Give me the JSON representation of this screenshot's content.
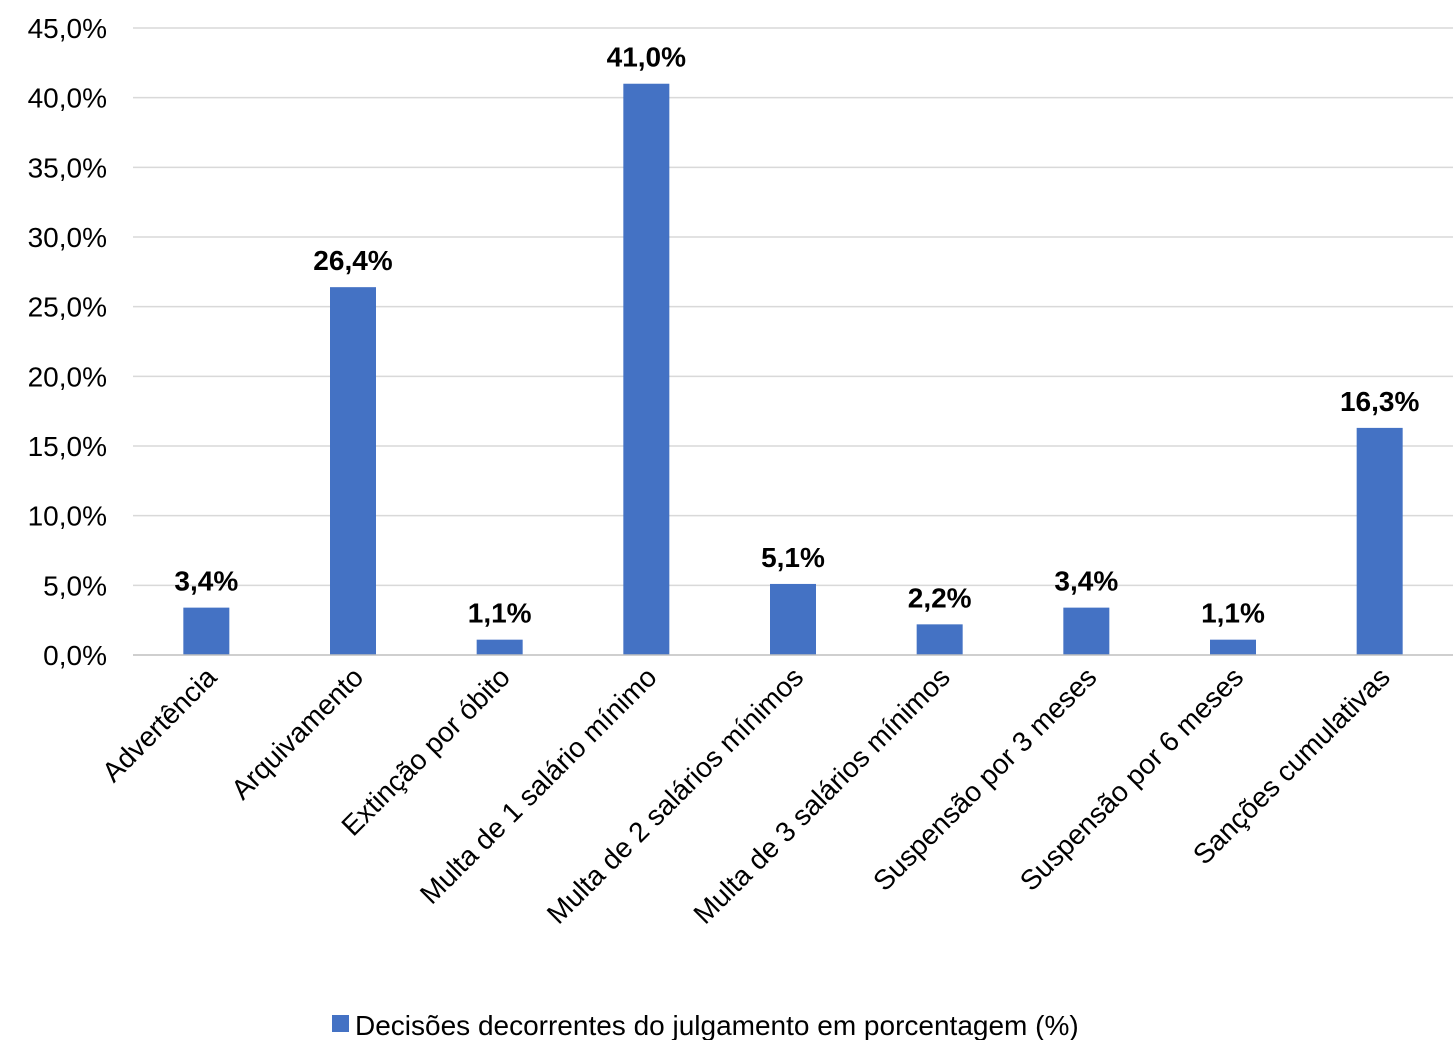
{
  "chart_data": {
    "type": "bar",
    "categories": [
      "Advertência",
      "Arquivamento",
      "Extinção por óbito",
      "Multa de 1 salário mínimo",
      "Multa de 2 salários mínimos",
      "Multa de 3 salários mínimos",
      "Suspensão por 3 meses",
      "Suspensão por 6 meses",
      "Sanções cumulativas"
    ],
    "series": [
      {
        "name": "Decisões decorrentes do julgamento em porcentagem (%)",
        "values": [
          3.4,
          26.4,
          1.1,
          41.0,
          5.1,
          2.2,
          3.4,
          1.1,
          16.3
        ],
        "color": "#4472C4"
      }
    ],
    "data_labels": [
      "3,4%",
      "26,4%",
      "1,1%",
      "41,0%",
      "5,1%",
      "2,2%",
      "3,4%",
      "1,1%",
      "16,3%"
    ],
    "y_ticks": [
      "0,0%",
      "5,0%",
      "10,0%",
      "15,0%",
      "20,0%",
      "25,0%",
      "30,0%",
      "35,0%",
      "40,0%",
      "45,0%"
    ],
    "ylim": [
      0,
      45
    ],
    "title": "",
    "xlabel": "",
    "ylabel": "",
    "grid": true,
    "legend_position": "bottom",
    "gridline_color": "#D9D9D9",
    "axis_color": "#BFBFBF"
  }
}
